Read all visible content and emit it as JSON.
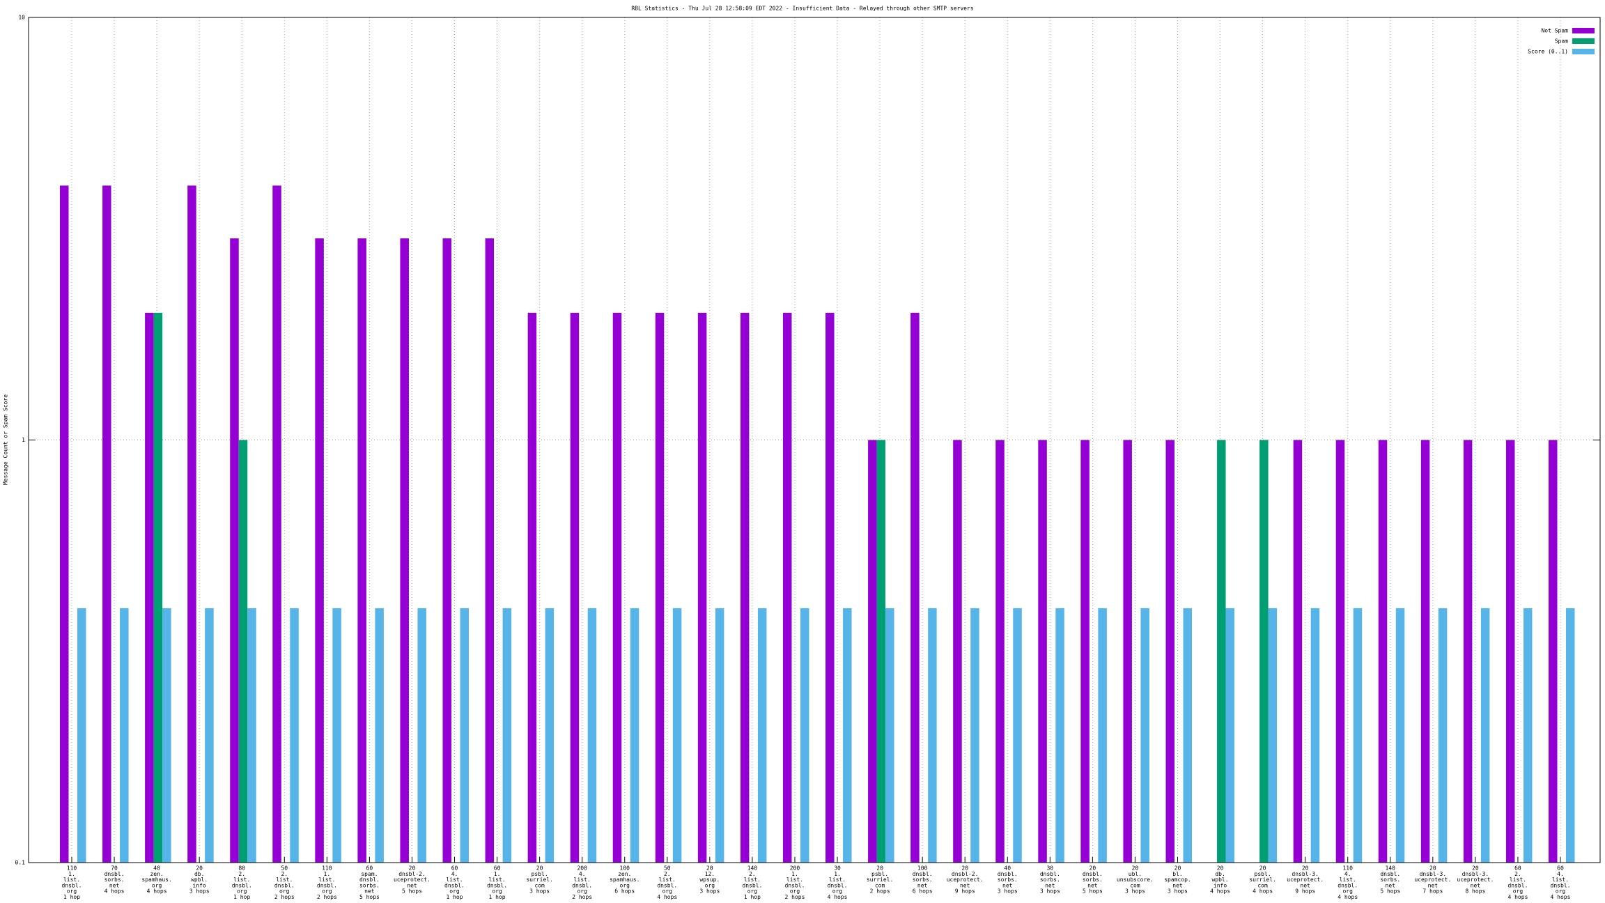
{
  "chart_data": {
    "type": "bar",
    "title": "RBL Statistics - Thu Jul 28 12:58:09 EDT 2022 - Insufficient Data - Relayed through other SMTP servers",
    "y_label": "Message Count or Spam Score",
    "log_y": true,
    "grid": true,
    "legend_position": "top-right",
    "ylim": [
      0.1,
      10
    ],
    "yticks": [
      0.1,
      1,
      10
    ],
    "categories": [
      [
        "110",
        "1.",
        "list.",
        "dnsbl.",
        "org",
        "1 hop"
      ],
      [
        "70",
        "dnsbl.",
        "sorbs.",
        "net",
        "4 hops"
      ],
      [
        "40",
        "zen.",
        "spamhaus.",
        "org",
        "4 hops"
      ],
      [
        "20",
        "db.",
        "wpbl.",
        "info",
        "3 hops"
      ],
      [
        "80",
        "2.",
        "list.",
        "dnsbl.",
        "org",
        "1 hop"
      ],
      [
        "50",
        "2.",
        "list.",
        "dnsbl.",
        "org",
        "2 hops"
      ],
      [
        "110",
        "1.",
        "list.",
        "dnsbl.",
        "org",
        "2 hops"
      ],
      [
        "60",
        "spam.",
        "dnsbl.",
        "sorbs.",
        "net",
        "5 hops"
      ],
      [
        "20",
        "dnsbl-2.",
        "uceprotect.",
        "net",
        "5 hops"
      ],
      [
        "60",
        "4.",
        "list.",
        "dnsbl.",
        "org",
        "1 hop"
      ],
      [
        "60",
        "1.",
        "list.",
        "dnsbl.",
        "org",
        "1 hop"
      ],
      [
        "20",
        "psbl.",
        "surriel.",
        "com",
        "3 hops"
      ],
      [
        "200",
        "4.",
        "list.",
        "dnsbl.",
        "org",
        "2 hops"
      ],
      [
        "100",
        "zen.",
        "spamhaus.",
        "org",
        "6 hops"
      ],
      [
        "50",
        "2.",
        "list.",
        "dnsbl.",
        "org",
        "4 hops"
      ],
      [
        "20",
        "12.",
        "wpsup.",
        "org",
        "3 hops"
      ],
      [
        "140",
        "2.",
        "list.",
        "dnsbl.",
        "org",
        "1 hop"
      ],
      [
        "200",
        "1.",
        "list.",
        "dnsbl.",
        "org",
        "2 hops"
      ],
      [
        "30",
        "1.",
        "list.",
        "dnsbl.",
        "org",
        "4 hops"
      ],
      [
        "20",
        "psbl.",
        "surriel.",
        "com",
        "2 hops"
      ],
      [
        "100",
        "dnsbl.",
        "sorbs.",
        "net",
        "6 hops"
      ],
      [
        "20",
        "dnsbl-2.",
        "uceprotect.",
        "net",
        "9 hops"
      ],
      [
        "40",
        "dnsbl.",
        "sorbs.",
        "net",
        "3 hops"
      ],
      [
        "30",
        "dnsbl.",
        "sorbs.",
        "net",
        "3 hops"
      ],
      [
        "20",
        "dnsbl.",
        "sorbs.",
        "net",
        "5 hops"
      ],
      [
        "20",
        "ubl.",
        "unsubscore.",
        "com",
        "3 hops"
      ],
      [
        "20",
        "bl.",
        "spamcop.",
        "net",
        "3 hops"
      ],
      [
        "20",
        "db.",
        "wpbl.",
        "info",
        "4 hops"
      ],
      [
        "20",
        "psbl.",
        "surriel.",
        "com",
        "4 hops"
      ],
      [
        "20",
        "dnsbl-3.",
        "uceprotect.",
        "net",
        "9 hops"
      ],
      [
        "110",
        "4.",
        "list.",
        "dnsbl.",
        "org",
        "4 hops"
      ],
      [
        "140",
        "dnsbl.",
        "sorbs.",
        "net",
        "5 hops"
      ],
      [
        "20",
        "dnsbl-3.",
        "uceprotect.",
        "net",
        "7 hops"
      ],
      [
        "20",
        "dnsbl-3.",
        "uceprotect.",
        "net",
        "8 hops"
      ],
      [
        "60",
        "2.",
        "list.",
        "dnsbl.",
        "org",
        "4 hops"
      ],
      [
        "60",
        "4.",
        "list.",
        "dnsbl.",
        "org",
        "4 hops"
      ]
    ],
    "series": [
      {
        "name": "Not Spam",
        "color": "#9400d3",
        "values": [
          4,
          4,
          2,
          4,
          3,
          4,
          3,
          3,
          3,
          3,
          3,
          2,
          2,
          2,
          2,
          2,
          2,
          2,
          2,
          1,
          2,
          1,
          1,
          1,
          1,
          1,
          1,
          null,
          null,
          1,
          1,
          1,
          1,
          1,
          1,
          1
        ]
      },
      {
        "name": "Spam",
        "color": "#009e73",
        "values": [
          null,
          null,
          2,
          null,
          1,
          null,
          null,
          null,
          null,
          null,
          null,
          null,
          null,
          null,
          null,
          null,
          null,
          null,
          null,
          1,
          null,
          null,
          null,
          null,
          null,
          null,
          null,
          1,
          1,
          null,
          null,
          null,
          null,
          null,
          null,
          null
        ]
      },
      {
        "name": "Score (0..1)",
        "color": "#56b4e9",
        "values": [
          0.4,
          0.4,
          0.4,
          0.4,
          0.4,
          0.4,
          0.4,
          0.4,
          0.4,
          0.4,
          0.4,
          0.4,
          0.4,
          0.4,
          0.4,
          0.4,
          0.4,
          0.4,
          0.4,
          0.4,
          0.4,
          0.4,
          0.4,
          0.4,
          0.4,
          0.4,
          0.4,
          0.4,
          0.4,
          0.4,
          0.4,
          0.4,
          0.4,
          0.4,
          0.4,
          0.4
        ]
      }
    ]
  }
}
